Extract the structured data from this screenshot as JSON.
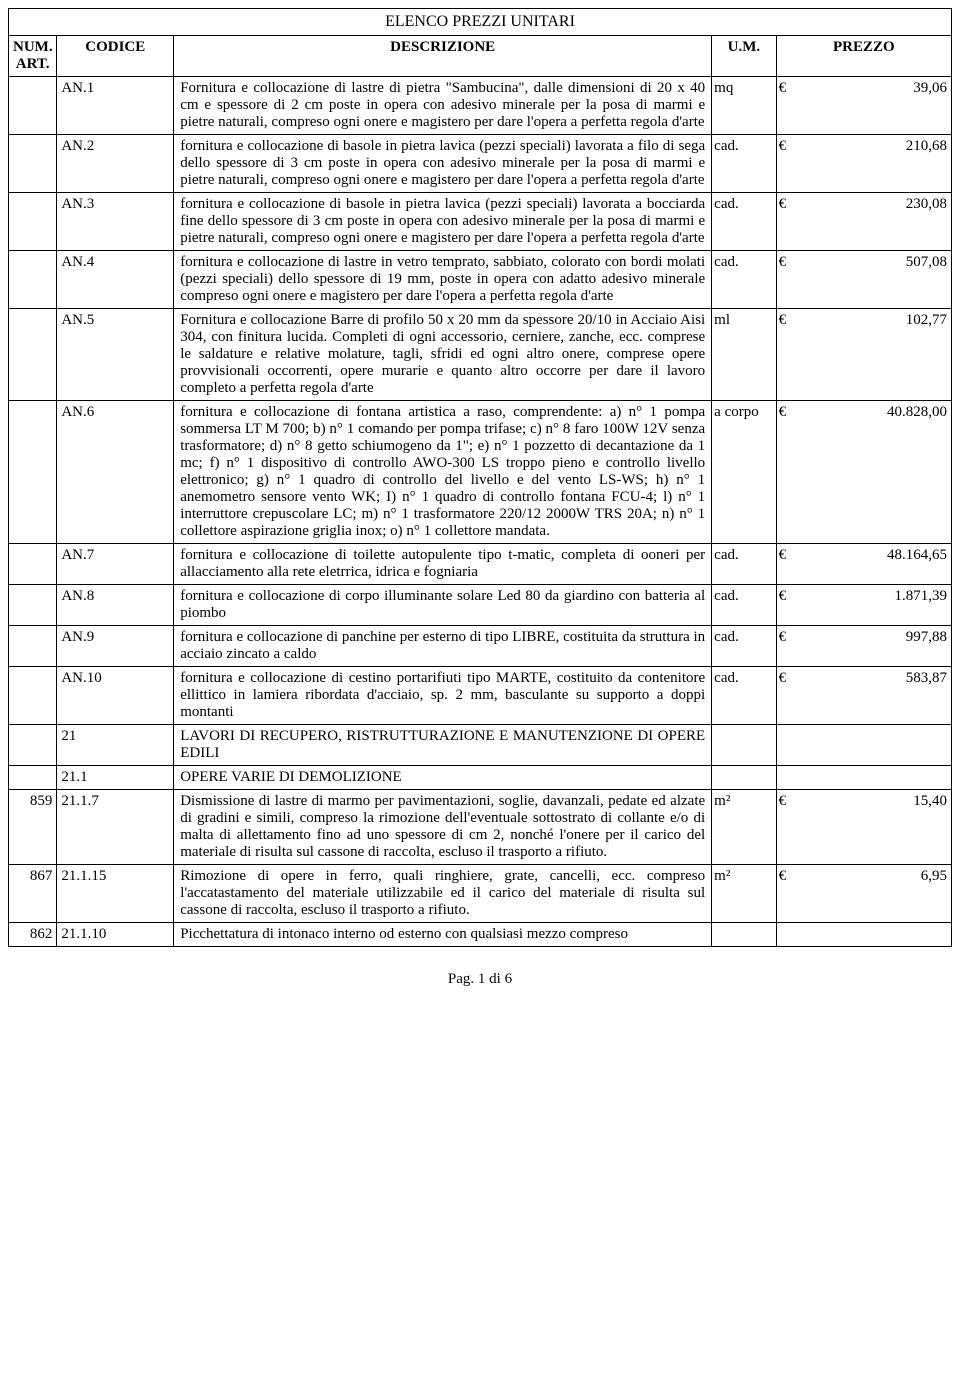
{
  "title": "ELENCO PREZZI UNITARI",
  "headers": {
    "num": "NUM. ART.",
    "cod": "CODICE",
    "desc": "DESCRIZIONE",
    "um": "U.M.",
    "prz": "PREZZO"
  },
  "footer": "Pag. 1 di 6",
  "currency": "€",
  "rows": [
    {
      "num": "",
      "cod": "AN.1",
      "desc": "Fornitura e collocazione di lastre di pietra \"Sambucina\", dalle dimensioni di 20 x 40 cm e  spessore di 2 cm poste in opera con adesivo minerale per la posa di marmi e pietre naturali, compreso ogni onere e magistero per dare l'opera a perfetta regola d'arte",
      "um": "mq",
      "prz": "39,06"
    },
    {
      "num": "",
      "cod": "AN.2",
      "desc": "fornitura e collocazione di basole in pietra lavica (pezzi speciali) lavorata a filo di sega dello spessore di 3 cm poste in opera con adesivo minerale per la posa di marmi e pietre naturali, compreso ogni onere e magistero per dare l'opera a perfetta regola d'arte",
      "um": "cad.",
      "prz": "210,68"
    },
    {
      "num": "",
      "cod": "AN.3",
      "desc": "fornitura  e collocazione di basole in pietra lavica (pezzi speciali) lavorata a bocciarda fine dello spessore di 3 cm poste in opera con adesivo minerale per la posa di marmi e pietre naturali, compreso ogni onere e magistero per dare l'opera a perfetta regola d'arte",
      "um": "cad.",
      "prz": "230,08"
    },
    {
      "num": "",
      "cod": "AN.4",
      "desc": "fornitura e collocazione di lastre in vetro temprato, sabbiato, colorato con bordi molati  (pezzi speciali)  dello spessore di 19 mm, poste in opera con adatto adesivo minerale compreso ogni onere e magistero per dare l'opera a perfetta regola d'arte",
      "um": "cad.",
      "prz": "507,08"
    },
    {
      "num": "",
      "cod": "AN.5",
      "desc": "Fornitura e collocazione Barre di profilo 50 x 20 mm da spessore 20/10 in Acciaio Aisi 304, con finitura lucida. Completi di ogni accessorio, cerniere, zanche, ecc. comprese le saldature e relative molature, tagli, sfridi ed ogni altro onere, comprese opere provvisionali occorrenti, opere murarie e quanto altro occorre per dare il lavoro completo a perfetta regola d'arte",
      "um": "ml",
      "prz": "102,77"
    },
    {
      "num": "",
      "cod": "AN.6",
      "desc": "fornitura e collocazione di fontana artistica a raso, comprendente: a) n° 1 pompa sommersa LT M 700; b) n° 1 comando per pompa trifase; c) n° 8 faro 100W 12V senza trasformatore; d) n° 8 getto schiumogeno da 1\"; e) n° 1 pozzetto di decantazione da 1 mc; f) n° 1 dispositivo di controllo AWO-300 LS troppo pieno e controllo livello elettronico; g) n° 1 quadro di controllo del livello e del vento LS-WS; h) n° 1 anemometro sensore vento WK; I) n° 1 quadro di controllo fontana FCU-4; l) n° 1 interruttore crepuscolare LC; m) n° 1 trasformatore 220/12 2000W TRS 20A; n) n° 1 collettore aspirazione griglia inox; o) n° 1 collettore mandata.",
      "um": "a corpo",
      "prz": "40.828,00"
    },
    {
      "num": "",
      "cod": "AN.7",
      "desc": "fornitura e collocazione di toilette autopulente tipo t-matic, completa di ooneri per allacciamento alla rete eletrrica, idrica e fogniaria",
      "um": "cad.",
      "prz": "48.164,65"
    },
    {
      "num": "",
      "cod": "AN.8",
      "desc": "fornitura e collocazione di corpo illuminante solare Led 80 da giardino con batteria al piombo",
      "um": "cad.",
      "prz": "1.871,39"
    },
    {
      "num": "",
      "cod": "AN.9",
      "desc": " fornitura e collocazione di panchine per esterno di tipo LIBRE, costituita da struttura in acciaio zincato a caldo",
      "um": "cad.",
      "prz": "997,88"
    },
    {
      "num": "",
      "cod": "AN.10",
      "desc": " fornitura e collocazione di cestino portarifiuti tipo MARTE, costituito da contenitore ellittico in lamiera ribordata d'acciaio, sp. 2 mm, basculante su supporto a doppi montanti",
      "um": "cad.",
      "prz": "583,87"
    },
    {
      "num": "",
      "cod": "21",
      "desc": "LAVORI DI RECUPERO, RISTRUTTURAZIONE E MANUTENZIONE DI OPERE EDILI",
      "um": "",
      "prz": ""
    },
    {
      "num": "",
      "cod": "21.1",
      "desc": "OPERE VARIE DI DEMOLIZIONE",
      "um": "",
      "prz": ""
    },
    {
      "num": "859",
      "cod": "21.1.7",
      "desc": "Dismissione di lastre di marmo per pavimentazioni, soglie, davanzali, pedate ed alzate di gradini e simili, compreso la rimozione dell'eventuale sottostrato di collante e/o di malta di allettamento fino ad uno spessore di cm 2, nonché l'onere per il carico del materiale di risulta sul cassone di raccolta, escluso il trasporto a rifiuto.",
      "um": "m²",
      "prz": "15,40"
    },
    {
      "num": "867",
      "cod": "21.1.15",
      "desc": "Rimozione di opere in ferro, quali ringhiere, grate, cancelli, ecc. compreso l'accatastamento del materiale utilizzabile ed il carico del materiale di risulta sul cassone di raccolta, escluso il trasporto a rifiuto.",
      "um": "m²",
      "prz": "6,95"
    },
    {
      "num": "862",
      "cod": "21.1.10",
      "desc": "Picchettatura di intonaco interno od esterno con qualsiasi mezzo compreso",
      "um": "",
      "prz": ""
    }
  ]
}
